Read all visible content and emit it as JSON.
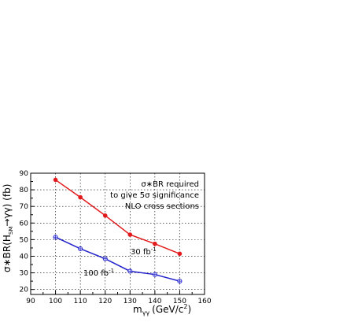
{
  "chart_data": {
    "type": "line",
    "xlabel": "m",
    "xlabel_sub": "γγ",
    "xlabel_units": "(GeV/c",
    "xlabel_units_sup": "2",
    "xlabel_units_end": ")",
    "ylabel": "σ∗BR(H",
    "ylabel_sub": "SM",
    "ylabel_end": "→γγ) (fb)",
    "xlim": [
      90,
      160
    ],
    "ylim": [
      17,
      90
    ],
    "xticks": [
      90,
      100,
      110,
      120,
      130,
      140,
      150,
      160
    ],
    "yticks": [
      20,
      30,
      40,
      50,
      60,
      70,
      80,
      90
    ],
    "grid": true,
    "annotations": [
      "σ∗BR required",
      "to give 5σ significance",
      "NLO cross sections"
    ],
    "series": [
      {
        "name": "30 fb",
        "name_sup": "-1",
        "color": "#e31a1c",
        "marker": "filled-circle",
        "x": [
          100,
          110,
          120,
          130,
          140,
          150
        ],
        "values": [
          86,
          75.5,
          64.5,
          53,
          47.5,
          41.5
        ]
      },
      {
        "name": "100 fb",
        "name_sup": "-1",
        "color": "#2222cc",
        "marker": "open-circle-cross",
        "x": [
          100,
          110,
          120,
          130,
          140,
          150
        ],
        "values": [
          51.5,
          44.5,
          38.5,
          31,
          29,
          25
        ]
      }
    ]
  }
}
